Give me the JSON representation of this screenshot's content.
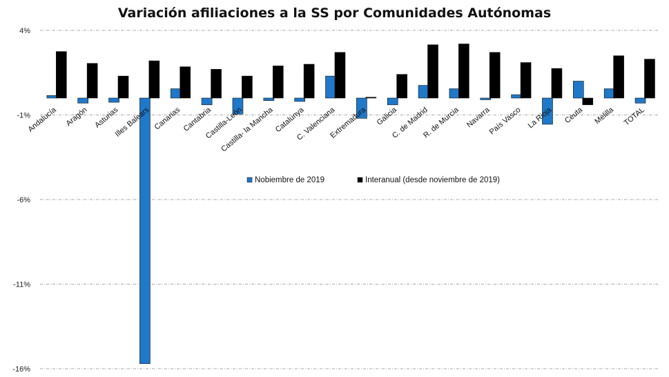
{
  "chart_data": {
    "type": "bar",
    "title": "Variación afiliaciones a la SS por Comunidades Autónomas",
    "xlabel": "",
    "ylabel": "",
    "ylim": [
      -16,
      4
    ],
    "yticks": [
      "4%",
      "-1%",
      "-6%",
      "-11%",
      "-16%"
    ],
    "ytick_values": [
      4,
      -1,
      -6,
      -11,
      -16
    ],
    "categories": [
      "Andalucía",
      "Aragón",
      "Asturias",
      "Illes Balears",
      "Canarias",
      "Cantabria",
      "Castilla-León",
      "Castilla- la Mancha",
      "Catalunya",
      "C. Valenciana",
      "Extremadura",
      "Galicia",
      "C. de Madrid",
      "R. de Murcia",
      "Navarra",
      "País Vasco",
      "La Rioja",
      "Ceuta",
      "Melilla",
      "TOTAL"
    ],
    "series": [
      {
        "name": "Nobiembre de 2019",
        "color": "#1f78c8",
        "values": [
          0.15,
          -0.3,
          -0.25,
          -15.7,
          0.55,
          -0.4,
          -0.95,
          -0.15,
          -0.2,
          1.3,
          -1.2,
          -0.4,
          0.75,
          0.55,
          -0.1,
          0.2,
          -1.55,
          1.0,
          0.55,
          -0.3
        ]
      },
      {
        "name": "Interanual (desde noviembre de 2019)",
        "color": "#000000",
        "values": [
          2.75,
          2.05,
          1.3,
          2.2,
          1.85,
          1.7,
          1.3,
          1.9,
          2.0,
          2.7,
          0.05,
          1.4,
          3.15,
          3.2,
          2.7,
          2.1,
          1.75,
          -0.4,
          2.5,
          2.3
        ]
      }
    ],
    "legend_position": "center",
    "grid": true
  }
}
